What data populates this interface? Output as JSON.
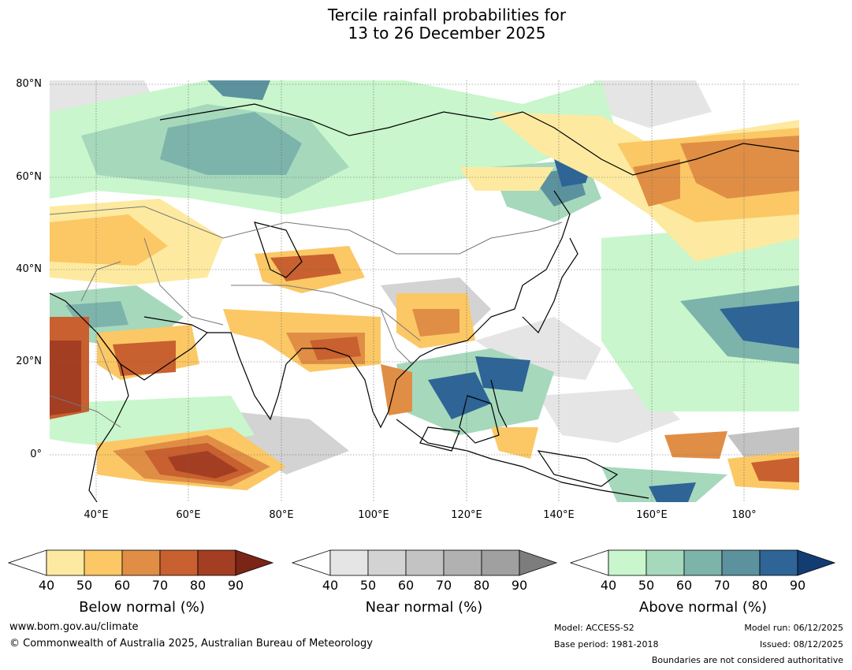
{
  "title": {
    "line1": "Tercile rainfall probabilities for",
    "line2": "13 to 26 December 2025"
  },
  "lat_labels": [
    "80°N",
    "60°N",
    "40°N",
    "20°N",
    "0°"
  ],
  "lon_labels": [
    "40°E",
    "60°E",
    "80°E",
    "100°E",
    "120°E",
    "140°E",
    "160°E",
    "180°"
  ],
  "colorbars": [
    {
      "name": "below",
      "label": "Below normal (%)",
      "ticks": [
        "40",
        "50",
        "60",
        "70",
        "80",
        "90"
      ],
      "colors": [
        "#ffffff",
        "#fdeaa0",
        "#fbc865",
        "#e08e45",
        "#c8602f",
        "#a43e22",
        "#7a2515"
      ]
    },
    {
      "name": "near",
      "label": "Near normal (%)",
      "ticks": [
        "40",
        "50",
        "60",
        "70",
        "80",
        "90"
      ],
      "colors": [
        "#ffffff",
        "#e5e5e5",
        "#d3d3d3",
        "#c3c3c3",
        "#b1b1b1",
        "#a0a0a0",
        "#7d7d7d"
      ]
    },
    {
      "name": "above",
      "label": "Above normal (%)",
      "ticks": [
        "40",
        "50",
        "60",
        "70",
        "80",
        "90"
      ],
      "colors": [
        "#ffffff",
        "#c9f6cc",
        "#a6d8bc",
        "#7cb3ab",
        "#5b929e",
        "#2e6496",
        "#123d73"
      ]
    }
  ],
  "footer": {
    "url": "www.bom.gov.au/climate",
    "copyright": "© Commonwealth of Australia 2025, Australian Bureau of Meteorology",
    "model": "Model: ACCESS-S2",
    "base_period": "Base period: 1981-2018",
    "model_run": "Model run: 06/12/2025",
    "issued": "Issued: 08/12/2025",
    "disclaimer": "Boundaries are not considered authoritative"
  }
}
